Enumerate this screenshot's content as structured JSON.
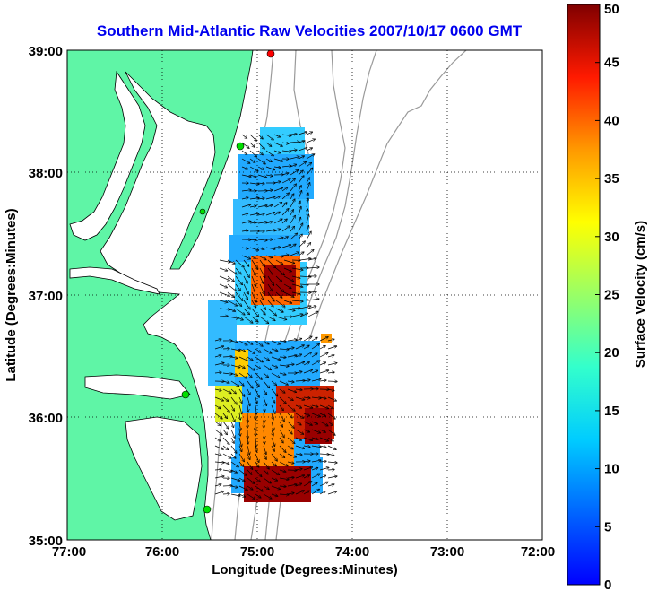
{
  "title": "Southern Mid-Atlantic Raw Velocities 2007/10/17 0600 GMT",
  "xlabel": "Longitude (Degrees:Minutes)",
  "ylabel": "Latitude (Degrees:Minutes)",
  "x_ticks": [
    "77:00",
    "76:00",
    "75:00",
    "74:00",
    "73:00",
    "72:00"
  ],
  "y_ticks": [
    "39:00",
    "38:00",
    "37:00",
    "36:00",
    "35:00"
  ],
  "colorbar": {
    "label": "Surface Velocity (cm/s)",
    "ticks": [
      "0",
      "5",
      "10",
      "15",
      "20",
      "25",
      "30",
      "35",
      "40",
      "45",
      "50"
    ],
    "min": 0,
    "max": 50,
    "colormap": "jet"
  },
  "map": {
    "lon_range": [
      -77,
      -72
    ],
    "lat_range": [
      35,
      39
    ],
    "grid": true,
    "land_color": "#5ff5a6",
    "water_color": "#ffffff",
    "bathymetry_color": "#9a9a9a"
  },
  "stations": [
    {
      "color": "#ff0000"
    },
    {
      "color": "#00dd00"
    },
    {
      "color": "#00dd00"
    },
    {
      "color": "#00dd00"
    },
    {
      "color": "#00dd00"
    }
  ]
}
